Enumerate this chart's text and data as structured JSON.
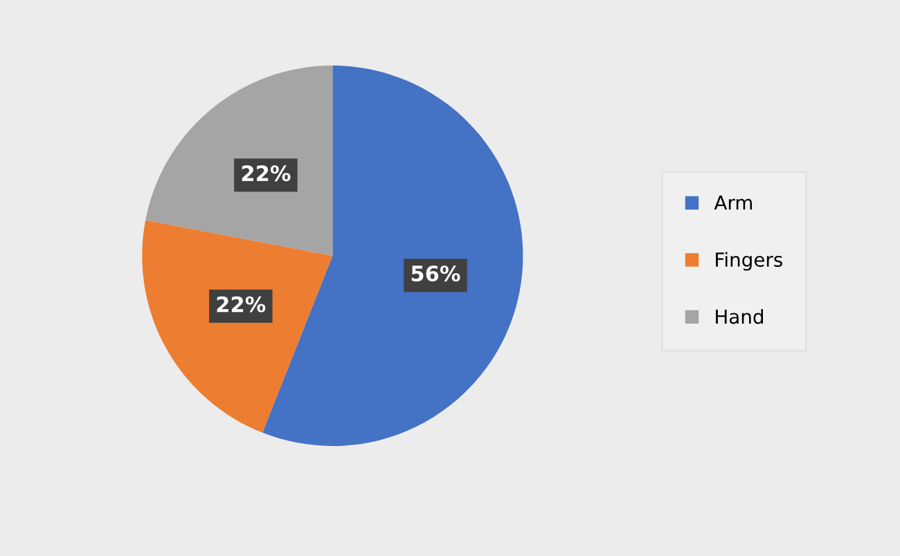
{
  "chart_data": {
    "type": "pie",
    "categories": [
      "Arm",
      "Fingers",
      "Hand"
    ],
    "values": [
      56,
      22,
      22
    ],
    "colors": [
      "#4472c4",
      "#ed7d31",
      "#a5a5a5"
    ],
    "value_labels": [
      "56%",
      "22%",
      "22%"
    ],
    "legend": "right"
  }
}
